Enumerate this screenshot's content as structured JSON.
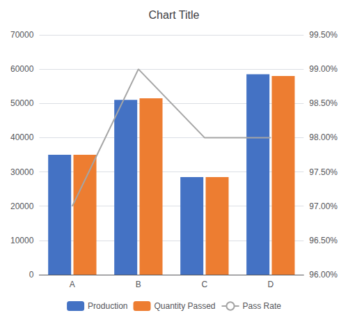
{
  "chart_data": {
    "type": "bar",
    "title": "Chart Title",
    "categories": [
      "A",
      "B",
      "C",
      "D"
    ],
    "series": [
      {
        "name": "Production",
        "type": "bar",
        "color": "#4472C4",
        "values": [
          35000,
          51000,
          28500,
          58500
        ]
      },
      {
        "name": "Quantity Passed",
        "type": "bar",
        "color": "#ED7D31",
        "values": [
          35000,
          51500,
          28500,
          58000
        ]
      },
      {
        "name": "Pass Rate",
        "type": "line",
        "color": "#A5A5A5",
        "axis": "y2",
        "values": [
          0.97,
          0.99,
          0.98,
          0.98
        ]
      }
    ],
    "ylim": [
      0,
      70000
    ],
    "yticks": [
      0,
      10000,
      20000,
      30000,
      40000,
      50000,
      60000,
      70000
    ],
    "y2lim": [
      0.96,
      0.995
    ],
    "y2ticks": [
      {
        "value": 0.96,
        "label": "96.00%"
      },
      {
        "value": 0.965,
        "label": "96.50%"
      },
      {
        "value": 0.97,
        "label": "97.00%"
      },
      {
        "value": 0.975,
        "label": "97.50%"
      },
      {
        "value": 0.98,
        "label": "98.00%"
      },
      {
        "value": 0.985,
        "label": "98.50%"
      },
      {
        "value": 0.99,
        "label": "99.00%"
      },
      {
        "value": 0.995,
        "label": "99.50%"
      }
    ],
    "grid": true,
    "legend": "bottom"
  }
}
